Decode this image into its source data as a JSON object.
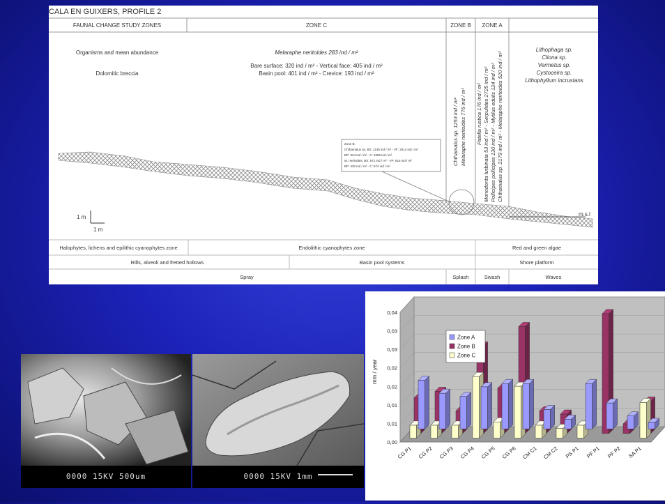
{
  "profile": {
    "title": "CALA EN GUIXERS, PROFILE 2",
    "header": {
      "col1": "FAUNAL CHANGE STUDY ZONES",
      "col2": "ZONE C",
      "col3": "ZONE B",
      "col4": "ZONE A"
    },
    "left_labels": {
      "line1": "Organisms and mean abundance",
      "line2": "Dolomitic breccia"
    },
    "zone_c": {
      "line1": "Melaraphe neritoides 283 ind / m²",
      "line2": "Bare surface: 320 ind / m² - Vertical face: 405 ind / m²",
      "line3": "Basin pool: 401 ind / m² - Crevice: 193 ind / m²"
    },
    "zone_b": {
      "line1": "Chthamalus sp. 1253 ind / m²",
      "line2": "Melaraphe neritoides 776 ind / m²"
    },
    "zone_a": {
      "line1": "Patella rustica 176 ind / m²",
      "line2": "Monodonta turbinata 53 ind / m² - Serpulides 2725 ind / m²",
      "line3": "Pollicipes pollicipes 130 ind / m² - Mytilus edulis 124 ind / m²",
      "line4": "Chthamalus sp. 2179 ind / m² - Melaraphe neritoides 520 ind / m²"
    },
    "right_species": [
      "Lithophaga sp.",
      "Cliona sp.",
      "Vermetus sp.",
      "Cystoceira sp.",
      "Lithophyllum incrustans"
    ],
    "inset": {
      "line1": "Zone B:",
      "line2": "Chthamalus sp. BS: 1135 ind / m² - VF: 2014 ind / m²",
      "line3": "BP: 324 ind / m² - C: 1555 ind / m²",
      "line4": "M. neritoides: BS: 571 ind / m² - VP: 616 ind / m²",
      "line5": "BP: 430 ind / m² - C: 574 ind / m²"
    },
    "scale_vertical": "1 m",
    "scale_horizontal": "1 m",
    "msl": "m.s.l",
    "row1": {
      "a": "Halophytes, lichens and epilithic cyanophytes zone",
      "b": "Endolithic cyanophytes zone",
      "c": "Red and green algae"
    },
    "row2": {
      "a": "Rills, alveoli and fretted hollows",
      "b": "Basin pool systems",
      "c": "Shore platform"
    },
    "row3": {
      "a": "Spray",
      "b": "Splash",
      "c": "Swash",
      "d": "Waves"
    }
  },
  "sem_images": [
    {
      "label": "0000  15KV  500um"
    },
    {
      "label": "0000  15KV   1mm"
    }
  ],
  "chart_data": {
    "type": "bar",
    "categories": [
      "CG P1",
      "CG P2",
      "CG P3",
      "CG P4",
      "CG P5",
      "CG P6",
      "CM C1",
      "CM C2",
      "PS P1",
      "PF P1",
      "PF P2",
      "SA P1"
    ],
    "series": [
      {
        "name": "Zone A",
        "color": "#9999ff",
        "values": [
          0.015,
          0.011,
          0.01,
          0.013,
          0.014,
          0.014,
          0.006,
          0.003,
          0.014,
          0.008,
          0.004,
          0.002
        ]
      },
      {
        "name": "Zone B",
        "color": "#993366",
        "values": [
          0.011,
          0.013,
          0.007,
          0.027,
          0.014,
          0.033,
          0.007,
          0.006,
          0.0,
          0.037,
          0.003,
          0.01
        ]
      },
      {
        "name": "Zone C",
        "color": "#ffffcc",
        "values": [
          0.004,
          0.004,
          0.004,
          0.019,
          0.005,
          0.016,
          0.004,
          0.003,
          0.004,
          0.0,
          0.0,
          0.011
        ]
      }
    ],
    "yticks": [
      "0,00",
      "0,01",
      "0,01",
      "0,02",
      "0,02",
      "0,03",
      "0,03",
      "0,04"
    ],
    "ylim": [
      0,
      0.04
    ],
    "ylabel": "mm / year",
    "xlabel": "",
    "legend_position": "top-left"
  }
}
